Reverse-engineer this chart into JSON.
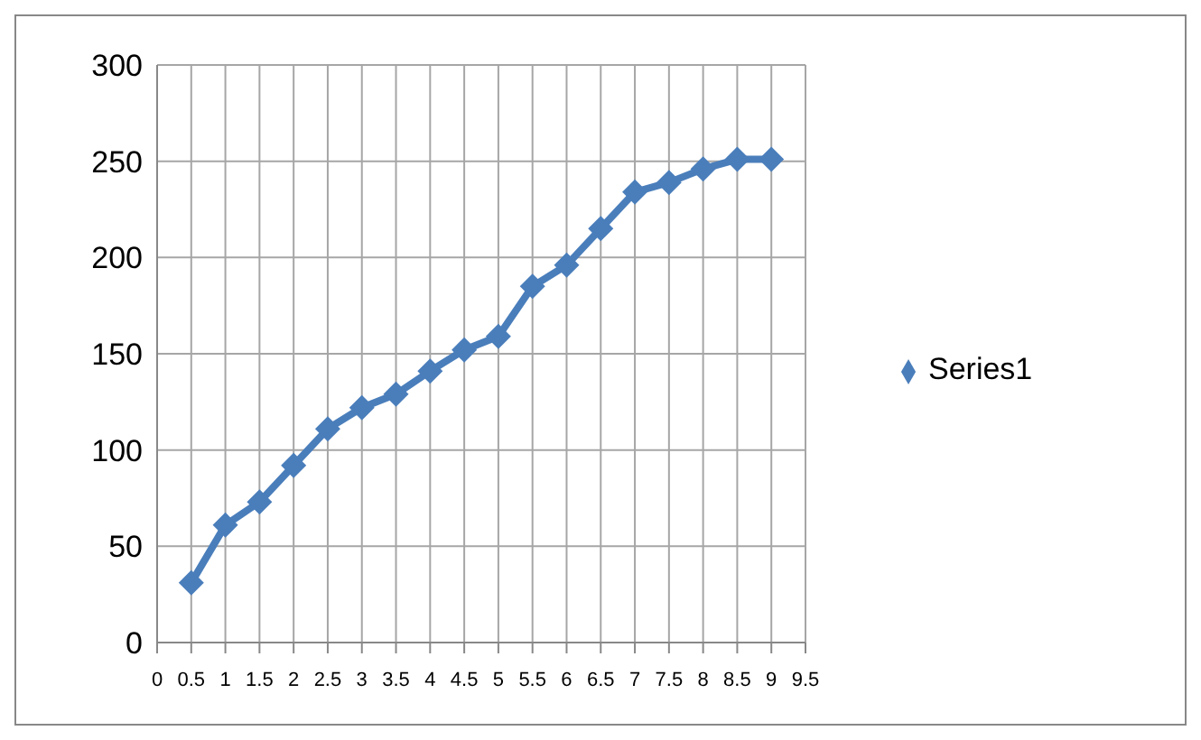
{
  "chart_data": {
    "type": "line",
    "x": [
      0.5,
      1,
      1.5,
      2,
      2.5,
      3,
      3.5,
      4,
      4.5,
      5,
      5.5,
      6,
      6.5,
      7,
      7.5,
      8,
      8.5,
      9
    ],
    "series": [
      {
        "name": "Series1",
        "color": "#4a7ebb",
        "values": [
          31,
          61,
          73,
          92,
          111,
          122,
          129,
          141,
          152,
          159,
          185,
          196,
          215,
          234,
          239,
          246,
          251,
          251
        ]
      }
    ],
    "xlim": [
      0,
      9.5
    ],
    "xticks": [
      0,
      0.5,
      1,
      1.5,
      2,
      2.5,
      3,
      3.5,
      4,
      4.5,
      5,
      5.5,
      6,
      6.5,
      7,
      7.5,
      8,
      8.5,
      9,
      9.5
    ],
    "ylim": [
      0,
      300
    ],
    "yticks": [
      0,
      50,
      100,
      150,
      200,
      250,
      300
    ],
    "grid": true,
    "legend": "right",
    "marker": "diamond",
    "line_style": "solid"
  }
}
